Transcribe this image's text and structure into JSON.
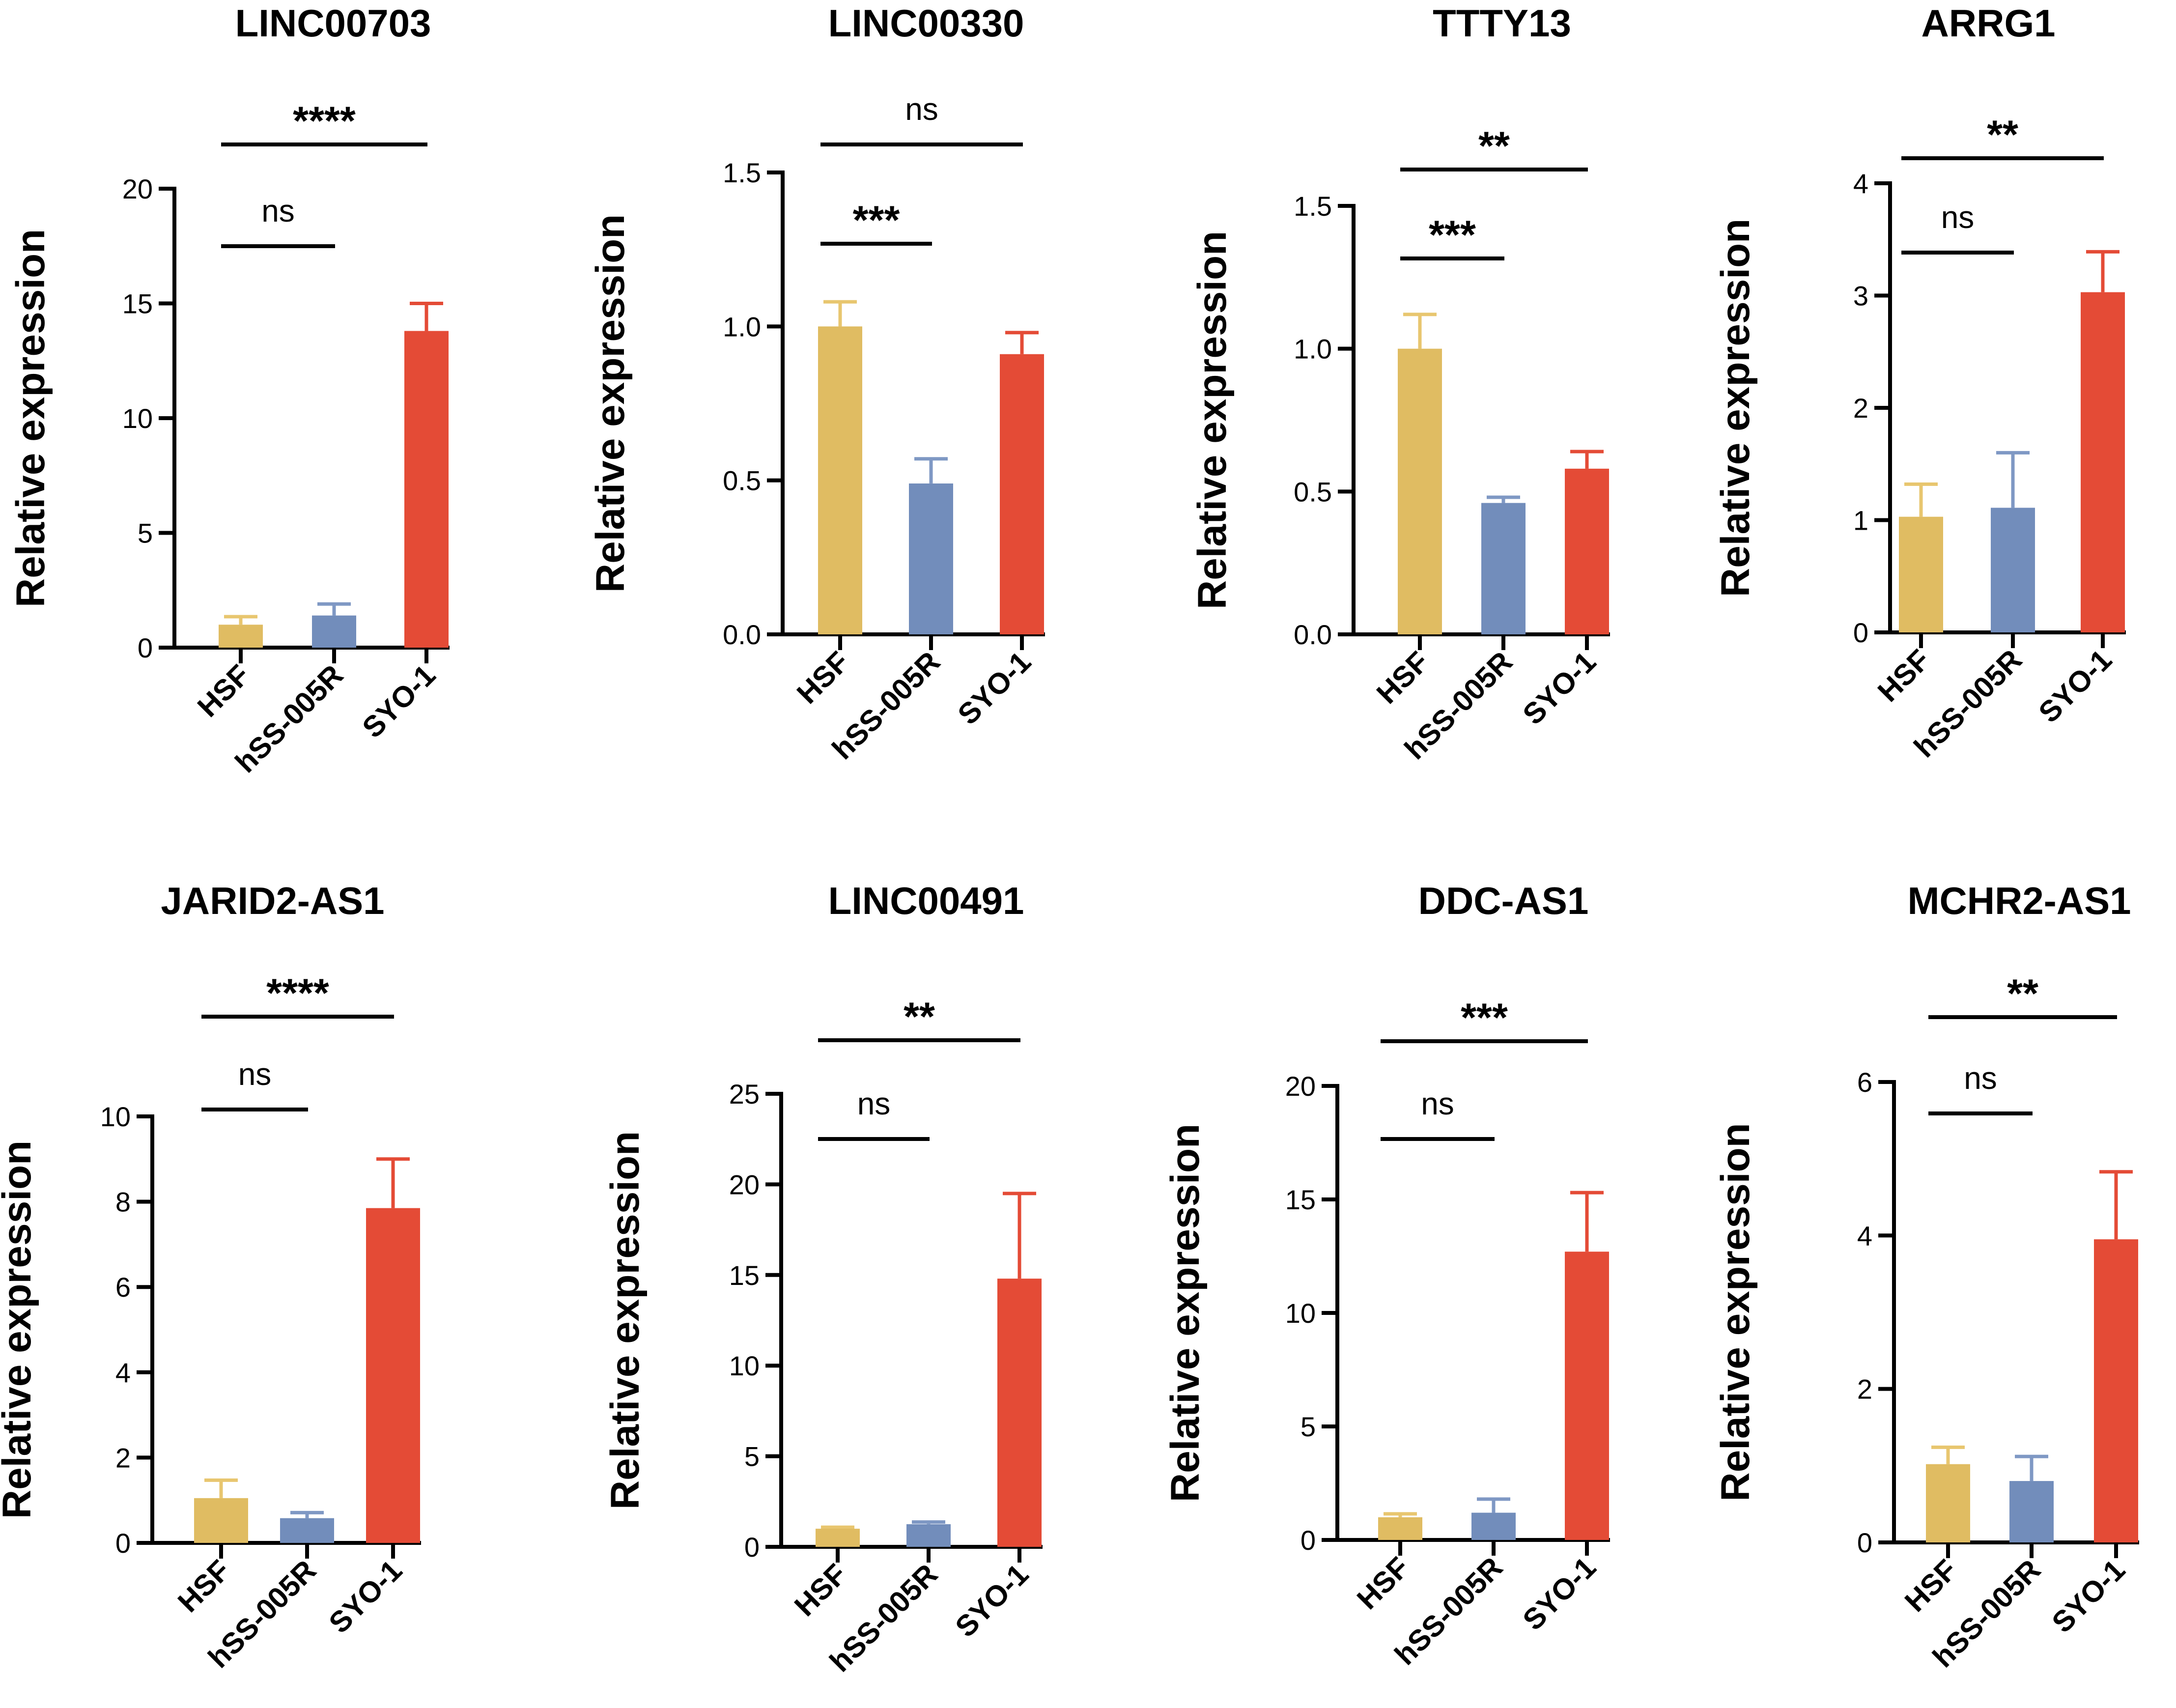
{
  "figure": {
    "y_axis_label": "Relative expression",
    "categories": [
      "HSF",
      "hSS-005R",
      "SYO-1"
    ],
    "bar_colors": [
      "#E0BC62",
      "#728DBB",
      "#E44B36"
    ]
  },
  "chart_data": [
    {
      "type": "bar",
      "title": "LINC00703",
      "categories": [
        "HSF",
        "hSS-005R",
        "SYO-1"
      ],
      "values": [
        1.0,
        1.4,
        13.8
      ],
      "errors": [
        0.35,
        0.5,
        1.2
      ],
      "ylabel": "Relative expression",
      "ylim": [
        0,
        20
      ],
      "yticks": [
        0,
        5,
        10,
        15,
        20
      ],
      "ytick_labels": [
        "0",
        "5",
        "10",
        "15",
        "20"
      ],
      "significance": [
        {
          "from": 0,
          "to": 1,
          "label": "ns"
        },
        {
          "from": 0,
          "to": 2,
          "label": "****"
        }
      ]
    },
    {
      "type": "bar",
      "title": "LINC00330",
      "categories": [
        "HSF",
        "hSS-005R",
        "SYO-1"
      ],
      "values": [
        1.0,
        0.49,
        0.91
      ],
      "errors": [
        0.08,
        0.08,
        0.07
      ],
      "ylabel": "Relative expression",
      "ylim": [
        0,
        1.5
      ],
      "yticks": [
        0,
        0.5,
        1.0,
        1.5
      ],
      "ytick_labels": [
        "0.0",
        "0.5",
        "1.0",
        "1.5"
      ],
      "significance": [
        {
          "from": 0,
          "to": 1,
          "label": "***"
        },
        {
          "from": 0,
          "to": 2,
          "label": "ns"
        }
      ]
    },
    {
      "type": "bar",
      "title": "TTTY13",
      "categories": [
        "HSF",
        "hSS-005R",
        "SYO-1"
      ],
      "values": [
        1.0,
        0.46,
        0.58
      ],
      "errors": [
        0.12,
        0.02,
        0.06
      ],
      "ylabel": "Relative expression",
      "ylim": [
        0,
        1.5
      ],
      "yticks": [
        0,
        0.5,
        1.0,
        1.5
      ],
      "ytick_labels": [
        "0.0",
        "0.5",
        "1.0",
        "1.5"
      ],
      "significance": [
        {
          "from": 0,
          "to": 1,
          "label": "***"
        },
        {
          "from": 0,
          "to": 2,
          "label": "**"
        }
      ]
    },
    {
      "type": "bar",
      "title": "ARRG1",
      "categories": [
        "HSF",
        "hSS-005R",
        "SYO-1"
      ],
      "values": [
        1.03,
        1.11,
        3.03
      ],
      "errors": [
        0.29,
        0.49,
        0.36
      ],
      "ylabel": "Relative expression",
      "ylim": [
        0,
        4
      ],
      "yticks": [
        0,
        1,
        2,
        3,
        4
      ],
      "ytick_labels": [
        "0",
        "1",
        "2",
        "3",
        "4"
      ],
      "significance": [
        {
          "from": 0,
          "to": 1,
          "label": "ns"
        },
        {
          "from": 0,
          "to": 2,
          "label": "**"
        }
      ]
    },
    {
      "type": "bar",
      "title": "JARID2-AS1",
      "categories": [
        "HSF",
        "hSS-005R",
        "SYO-1"
      ],
      "values": [
        1.05,
        0.58,
        7.85
      ],
      "errors": [
        0.42,
        0.13,
        1.15
      ],
      "ylabel": "Relative expression",
      "ylim": [
        0,
        10
      ],
      "yticks": [
        0,
        2,
        4,
        6,
        8,
        10
      ],
      "ytick_labels": [
        "0",
        "2",
        "4",
        "6",
        "8",
        "10"
      ],
      "significance": [
        {
          "from": 0,
          "to": 1,
          "label": "ns"
        },
        {
          "from": 0,
          "to": 2,
          "label": "****"
        }
      ]
    },
    {
      "type": "bar",
      "title": "LINC00491",
      "categories": [
        "HSF",
        "hSS-005R",
        "SYO-1"
      ],
      "values": [
        1.0,
        1.25,
        14.8
      ],
      "errors": [
        0.08,
        0.12,
        4.7
      ],
      "ylabel": "Relative expression",
      "ylim": [
        0,
        25
      ],
      "yticks": [
        0,
        5,
        10,
        15,
        20,
        25
      ],
      "ytick_labels": [
        "0",
        "5",
        "10",
        "15",
        "20",
        "25"
      ],
      "significance": [
        {
          "from": 0,
          "to": 1,
          "label": "ns"
        },
        {
          "from": 0,
          "to": 2,
          "label": "**"
        }
      ]
    },
    {
      "type": "bar",
      "title": "DDC-AS1",
      "categories": [
        "HSF",
        "hSS-005R",
        "SYO-1"
      ],
      "values": [
        1.0,
        1.2,
        12.7
      ],
      "errors": [
        0.15,
        0.6,
        2.6
      ],
      "ylabel": "Relative expression",
      "ylim": [
        0,
        20
      ],
      "yticks": [
        0,
        5,
        10,
        15,
        20
      ],
      "ytick_labels": [
        "0",
        "5",
        "10",
        "15",
        "20"
      ],
      "significance": [
        {
          "from": 0,
          "to": 1,
          "label": "ns"
        },
        {
          "from": 0,
          "to": 2,
          "label": "***"
        }
      ]
    },
    {
      "type": "bar",
      "title": "MCHR2-AS1",
      "categories": [
        "HSF",
        "hSS-005R",
        "SYO-1"
      ],
      "values": [
        1.02,
        0.8,
        3.95
      ],
      "errors": [
        0.22,
        0.32,
        0.88
      ],
      "ylabel": "Relative expression",
      "ylim": [
        0,
        6
      ],
      "yticks": [
        0,
        2,
        4,
        6
      ],
      "ytick_labels": [
        "0",
        "2",
        "4",
        "6"
      ],
      "significance": [
        {
          "from": 0,
          "to": 1,
          "label": "ns"
        },
        {
          "from": 0,
          "to": 2,
          "label": "**"
        }
      ]
    }
  ]
}
